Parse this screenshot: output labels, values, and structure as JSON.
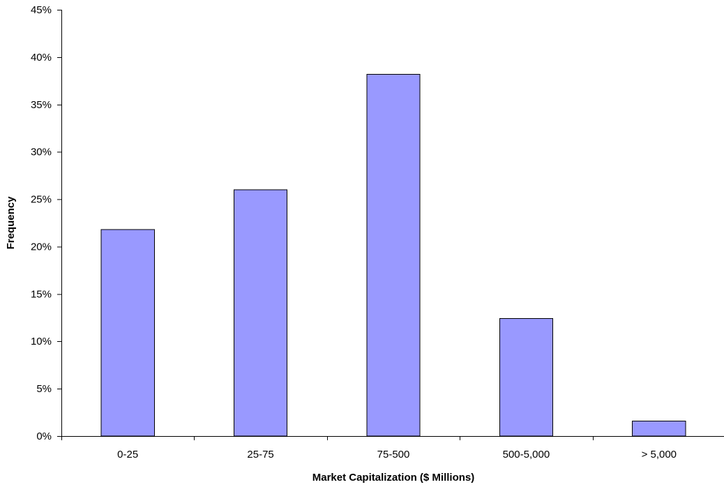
{
  "chart_data": {
    "type": "bar",
    "title": "",
    "xlabel": "Market Capitalization ($ Millions)",
    "ylabel": "Frequency",
    "categories": [
      "0-25",
      "25-75",
      "75-500",
      "500-5,000",
      "> 5,000"
    ],
    "values": [
      21.8,
      26.0,
      38.2,
      12.4,
      1.6
    ],
    "ylim": [
      0,
      45
    ],
    "yticks": [
      0,
      5,
      10,
      15,
      20,
      25,
      30,
      35,
      40,
      45
    ],
    "ytick_suffix": "%",
    "grid": false,
    "legend": "none",
    "colors": {
      "bar_fill": "#9999ff",
      "bar_stroke": "#000000",
      "axis": "#000000"
    }
  }
}
